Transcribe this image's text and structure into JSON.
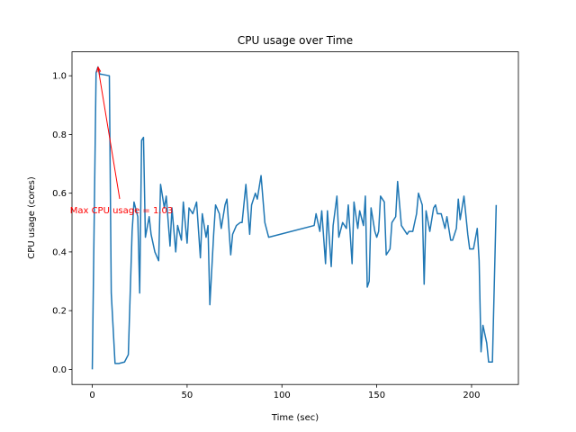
{
  "chart_data": {
    "type": "line",
    "title": "CPU usage over Time",
    "x_label": "Time (sec)",
    "y_label": "CPU usage (cores)",
    "x": [
      0,
      2,
      3,
      4,
      5,
      9,
      10,
      12,
      14,
      17,
      19,
      21,
      22,
      24,
      25,
      26,
      27,
      28,
      30,
      31,
      33,
      35,
      36,
      38,
      39,
      41,
      42,
      44,
      45,
      47,
      48,
      50,
      51,
      53,
      55,
      57,
      58,
      60,
      61,
      62,
      64,
      65,
      67,
      68,
      70,
      71,
      73,
      74,
      76,
      78,
      79,
      81,
      83,
      84,
      86,
      87,
      89,
      91,
      93,
      117,
      118,
      120,
      121,
      123,
      124,
      126,
      127,
      129,
      130,
      132,
      134,
      135,
      137,
      138,
      140,
      141,
      143,
      144,
      145,
      146,
      147,
      149,
      150,
      151,
      152,
      154,
      155,
      157,
      158,
      160,
      161,
      163,
      164,
      166,
      167,
      169,
      171,
      172,
      174,
      175,
      176,
      178,
      180,
      181,
      182,
      184,
      186,
      187,
      189,
      190,
      192,
      193,
      194,
      196,
      198,
      199,
      201,
      203,
      204,
      205,
      206,
      208,
      209,
      211,
      213
    ],
    "series": [
      {
        "color": "#1f77b4",
        "values": [
          0.0,
          1.01,
          1.03,
          1.005,
          1.005,
          1.0,
          0.26,
          0.02,
          0.02,
          0.025,
          0.05,
          0.47,
          0.57,
          0.52,
          0.26,
          0.78,
          0.79,
          0.45,
          0.52,
          0.46,
          0.4,
          0.37,
          0.63,
          0.55,
          0.59,
          0.42,
          0.55,
          0.4,
          0.49,
          0.44,
          0.57,
          0.43,
          0.55,
          0.53,
          0.57,
          0.38,
          0.53,
          0.45,
          0.49,
          0.22,
          0.46,
          0.56,
          0.53,
          0.48,
          0.56,
          0.58,
          0.39,
          0.46,
          0.49,
          0.5,
          0.5,
          0.63,
          0.46,
          0.56,
          0.6,
          0.58,
          0.66,
          0.5,
          0.45,
          0.49,
          0.53,
          0.47,
          0.54,
          0.36,
          0.54,
          0.35,
          0.49,
          0.59,
          0.45,
          0.5,
          0.48,
          0.56,
          0.36,
          0.57,
          0.48,
          0.54,
          0.49,
          0.59,
          0.28,
          0.3,
          0.55,
          0.47,
          0.45,
          0.47,
          0.59,
          0.57,
          0.39,
          0.41,
          0.5,
          0.52,
          0.64,
          0.49,
          0.48,
          0.46,
          0.47,
          0.47,
          0.53,
          0.6,
          0.56,
          0.29,
          0.54,
          0.47,
          0.55,
          0.56,
          0.53,
          0.53,
          0.48,
          0.52,
          0.44,
          0.44,
          0.48,
          0.58,
          0.51,
          0.59,
          0.46,
          0.41,
          0.41,
          0.48,
          0.37,
          0.06,
          0.15,
          0.09,
          0.025,
          0.025,
          0.56
        ]
      }
    ],
    "xlim": [
      -10.7,
      224.7
    ],
    "ylim": [
      -0.0515,
      1.0815
    ],
    "xticks": [
      0,
      50,
      100,
      150,
      200
    ],
    "yticks": [
      {
        "value": 0,
        "label": "0.0"
      },
      0.2,
      0.4,
      0.6,
      0.8,
      {
        "value": 1,
        "label": "1.0"
      }
    ],
    "annotation": {
      "text": "Max CPU usage = 1.03",
      "x": 3,
      "y": 1.03,
      "color": "#ff0000"
    }
  }
}
